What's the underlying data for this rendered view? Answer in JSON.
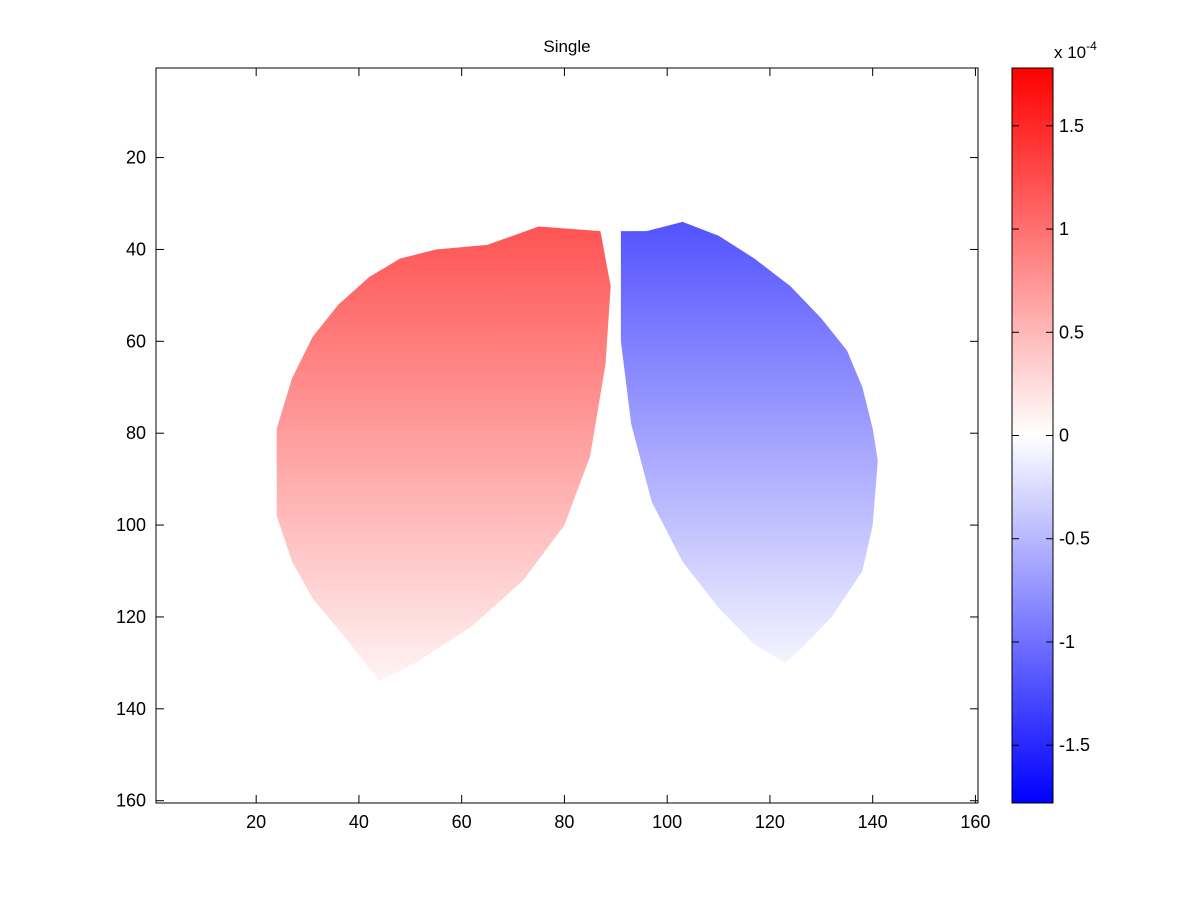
{
  "chart_data": {
    "type": "heatmap",
    "title": "Single",
    "xlabel": "",
    "ylabel": "",
    "xlim": [
      0.5,
      160.5
    ],
    "ylim": [
      0.5,
      160.5
    ],
    "y_reversed": true,
    "x_ticks": [
      "20",
      "40",
      "60",
      "80",
      "100",
      "120",
      "140",
      "160"
    ],
    "y_ticks": [
      "20",
      "40",
      "60",
      "80",
      "100",
      "120",
      "140",
      "160"
    ],
    "colorbar": {
      "range": [
        -0.000178,
        0.000178
      ],
      "multiplier_base": "x 10",
      "multiplier_exp": "-4",
      "ticks": [
        "1.5",
        "1",
        "0.5",
        "0",
        "-0.5",
        "-1",
        "-1.5"
      ],
      "colormap": "blue-white-red",
      "low_color": "#0000ff",
      "mid_color": "#ffffff",
      "high_color": "#ff0000"
    },
    "regions": [
      {
        "name": "left lobe",
        "sign": "positive",
        "boundary": [
          [
            87,
            36
          ],
          [
            75,
            35
          ],
          [
            65,
            39
          ],
          [
            55,
            40
          ],
          [
            48,
            42
          ],
          [
            42,
            46
          ],
          [
            36,
            52
          ],
          [
            31,
            59
          ],
          [
            27,
            68
          ],
          [
            24,
            79
          ],
          [
            24,
            98
          ],
          [
            27,
            108
          ],
          [
            31,
            116
          ],
          [
            37,
            124
          ],
          [
            44,
            134
          ],
          [
            51,
            130
          ],
          [
            62,
            122
          ],
          [
            72,
            112
          ],
          [
            80,
            100
          ],
          [
            85,
            85
          ],
          [
            88,
            65
          ],
          [
            89,
            48
          ]
        ],
        "top_value": 0.00012,
        "bottom_value": 8e-06
      },
      {
        "name": "right lobe",
        "sign": "negative",
        "boundary": [
          [
            91,
            36
          ],
          [
            96,
            36
          ],
          [
            103,
            34
          ],
          [
            110,
            37
          ],
          [
            117,
            42
          ],
          [
            124,
            48
          ],
          [
            130,
            55
          ],
          [
            135,
            62
          ],
          [
            138,
            70
          ],
          [
            140,
            79
          ],
          [
            141,
            86
          ],
          [
            140,
            100
          ],
          [
            138,
            110
          ],
          [
            132,
            120
          ],
          [
            126,
            127
          ],
          [
            123,
            130
          ],
          [
            117,
            126
          ],
          [
            110,
            118
          ],
          [
            103,
            108
          ],
          [
            97,
            95
          ],
          [
            93,
            78
          ],
          [
            91,
            60
          ],
          [
            91,
            45
          ]
        ],
        "top_value": -0.00012,
        "bottom_value": -8e-06
      }
    ]
  }
}
